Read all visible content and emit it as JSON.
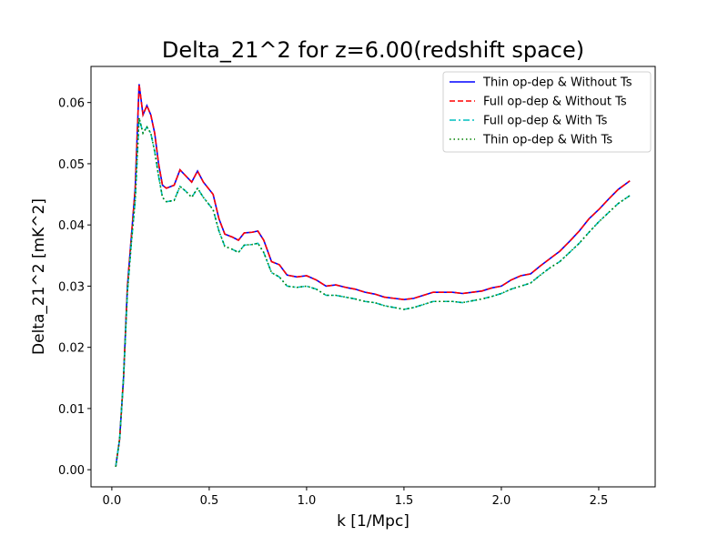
{
  "chart_data": {
    "type": "line",
    "title": "Delta_21^2 for z=6.00(redshift space)",
    "xlabel": "k [1/Mpc]",
    "ylabel": "Delta_21^2 [mK^2]",
    "x": [
      0.02,
      0.04,
      0.06,
      0.08,
      0.1,
      0.12,
      0.14,
      0.16,
      0.18,
      0.2,
      0.22,
      0.24,
      0.26,
      0.28,
      0.32,
      0.35,
      0.38,
      0.41,
      0.44,
      0.47,
      0.52,
      0.55,
      0.58,
      0.62,
      0.65,
      0.68,
      0.72,
      0.75,
      0.78,
      0.82,
      0.86,
      0.9,
      0.95,
      1.0,
      1.05,
      1.1,
      1.15,
      1.2,
      1.25,
      1.3,
      1.35,
      1.4,
      1.45,
      1.5,
      1.55,
      1.6,
      1.65,
      1.7,
      1.75,
      1.8,
      1.85,
      1.9,
      1.95,
      2.0,
      2.05,
      2.1,
      2.15,
      2.2,
      2.25,
      2.3,
      2.35,
      2.4,
      2.45,
      2.5,
      2.55,
      2.6,
      2.66
    ],
    "series": [
      {
        "name": "Thin op-dep & Without Ts",
        "color": "#0000ff",
        "linestyle": "solid",
        "values": [
          0.0005,
          0.005,
          0.015,
          0.03,
          0.038,
          0.046,
          0.063,
          0.058,
          0.0595,
          0.058,
          0.055,
          0.05,
          0.0465,
          0.046,
          0.0465,
          0.049,
          0.048,
          0.047,
          0.0488,
          0.047,
          0.045,
          0.041,
          0.0385,
          0.038,
          0.0375,
          0.0387,
          0.0388,
          0.039,
          0.0375,
          0.034,
          0.0335,
          0.0318,
          0.0315,
          0.0317,
          0.031,
          0.03,
          0.0302,
          0.0298,
          0.0295,
          0.029,
          0.0287,
          0.0282,
          0.028,
          0.0278,
          0.028,
          0.0285,
          0.029,
          0.029,
          0.029,
          0.0288,
          0.029,
          0.0292,
          0.0297,
          0.03,
          0.031,
          0.0317,
          0.032,
          0.0333,
          0.0345,
          0.0357,
          0.0373,
          0.039,
          0.041,
          0.0425,
          0.0442,
          0.0458,
          0.0472
        ]
      },
      {
        "name": "Full op-dep & Without Ts",
        "color": "#ff0000",
        "linestyle": "dashed",
        "values": [
          0.0005,
          0.005,
          0.015,
          0.03,
          0.038,
          0.046,
          0.063,
          0.058,
          0.0595,
          0.058,
          0.055,
          0.05,
          0.0465,
          0.046,
          0.0465,
          0.049,
          0.048,
          0.047,
          0.0488,
          0.047,
          0.045,
          0.041,
          0.0385,
          0.038,
          0.0375,
          0.0387,
          0.0388,
          0.039,
          0.0375,
          0.034,
          0.0335,
          0.0318,
          0.0315,
          0.0317,
          0.031,
          0.03,
          0.0302,
          0.0298,
          0.0295,
          0.029,
          0.0287,
          0.0282,
          0.028,
          0.0278,
          0.028,
          0.0285,
          0.029,
          0.029,
          0.029,
          0.0288,
          0.029,
          0.0292,
          0.0297,
          0.03,
          0.031,
          0.0317,
          0.032,
          0.0333,
          0.0345,
          0.0357,
          0.0373,
          0.039,
          0.041,
          0.0425,
          0.0442,
          0.0458,
          0.0472
        ]
      },
      {
        "name": "Full op-dep & With Ts",
        "color": "#00bfbf",
        "linestyle": "dashdot",
        "values": [
          0.0005,
          0.005,
          0.015,
          0.029,
          0.037,
          0.044,
          0.0575,
          0.055,
          0.056,
          0.055,
          0.052,
          0.048,
          0.0445,
          0.0438,
          0.044,
          0.0463,
          0.0455,
          0.0445,
          0.046,
          0.0445,
          0.0425,
          0.039,
          0.0365,
          0.036,
          0.0355,
          0.0367,
          0.0368,
          0.037,
          0.0355,
          0.0322,
          0.0315,
          0.03,
          0.0298,
          0.03,
          0.0295,
          0.0285,
          0.0285,
          0.0282,
          0.0279,
          0.0275,
          0.0273,
          0.0268,
          0.0265,
          0.0262,
          0.0265,
          0.027,
          0.0275,
          0.0275,
          0.0275,
          0.0273,
          0.0276,
          0.0279,
          0.0283,
          0.0288,
          0.0295,
          0.03,
          0.0305,
          0.0318,
          0.033,
          0.034,
          0.0355,
          0.037,
          0.0388,
          0.0405,
          0.042,
          0.0435,
          0.0448
        ]
      },
      {
        "name": "Thin op-dep & With Ts",
        "color": "#008000",
        "linestyle": "dotted",
        "values": [
          0.0005,
          0.005,
          0.015,
          0.029,
          0.037,
          0.044,
          0.0575,
          0.055,
          0.056,
          0.055,
          0.052,
          0.048,
          0.0445,
          0.0438,
          0.044,
          0.0463,
          0.0455,
          0.0445,
          0.046,
          0.0445,
          0.0425,
          0.039,
          0.0365,
          0.036,
          0.0355,
          0.0367,
          0.0368,
          0.037,
          0.0355,
          0.0322,
          0.0315,
          0.03,
          0.0298,
          0.03,
          0.0295,
          0.0285,
          0.0285,
          0.0282,
          0.0279,
          0.0275,
          0.0273,
          0.0268,
          0.0265,
          0.0262,
          0.0265,
          0.027,
          0.0275,
          0.0275,
          0.0275,
          0.0273,
          0.0276,
          0.0279,
          0.0283,
          0.0288,
          0.0295,
          0.03,
          0.0305,
          0.0318,
          0.033,
          0.034,
          0.0355,
          0.037,
          0.0388,
          0.0405,
          0.042,
          0.0435,
          0.0448
        ]
      }
    ],
    "xlim": [
      -0.107,
      2.79
    ],
    "ylim": [
      -0.0028,
      0.0659
    ],
    "xticks": [
      {
        "value": 0,
        "label": "0.0"
      },
      0.5,
      {
        "value": 1,
        "label": "1.0"
      },
      1.5,
      {
        "value": 2,
        "label": "2.0"
      },
      2.5
    ],
    "yticks": [
      {
        "value": 0,
        "label": "0.00"
      },
      {
        "value": 0.01,
        "label": "0.01"
      },
      {
        "value": 0.02,
        "label": "0.02"
      },
      {
        "value": 0.03,
        "label": "0.03"
      },
      {
        "value": 0.04,
        "label": "0.04"
      },
      {
        "value": 0.05,
        "label": "0.05"
      },
      {
        "value": 0.06,
        "label": "0.06"
      }
    ],
    "legend": "upper right",
    "grid": false
  }
}
